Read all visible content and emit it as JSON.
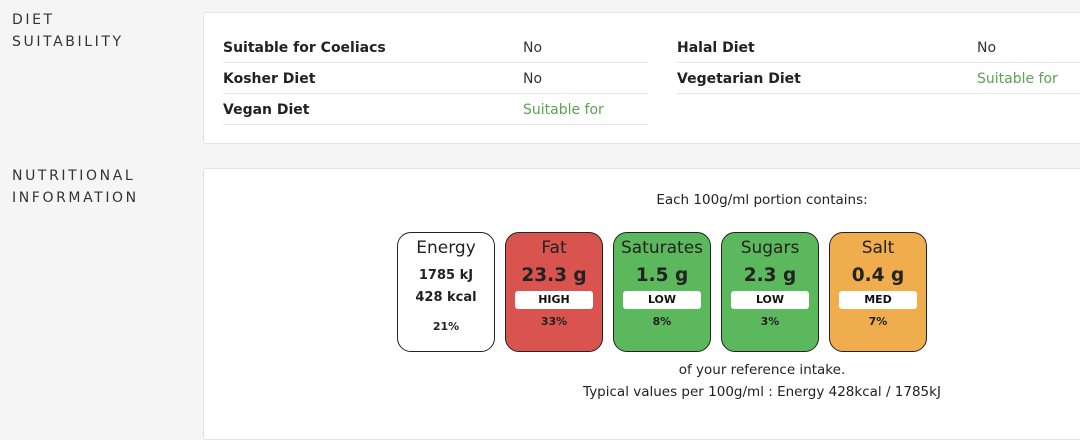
{
  "sections": {
    "diet": {
      "label_line1": "DIET",
      "label_line2": "SUITABILITY"
    },
    "nutrition": {
      "label_line1": "NUTRITIONAL",
      "label_line2": "INFORMATION"
    }
  },
  "diet": {
    "left": [
      {
        "label": "Suitable for Coeliacs",
        "value": "No"
      },
      {
        "label": "Kosher Diet",
        "value": "No"
      },
      {
        "label": "Vegan Diet",
        "value": "Suitable for"
      }
    ],
    "right": [
      {
        "label": "Halal Diet",
        "value": "No"
      },
      {
        "label": "Vegetarian Diet",
        "value": "Suitable for"
      }
    ]
  },
  "nutrition": {
    "portion_text": "Each 100g/ml portion contains:",
    "energy": {
      "name": "Energy",
      "kj": "1785 kJ",
      "kcal": "428 kcal",
      "pct": "21%"
    },
    "tiles": [
      {
        "name": "Fat",
        "amount": "23.3 g",
        "level": "HIGH",
        "pct": "33%",
        "color": "#d9534f"
      },
      {
        "name": "Saturates",
        "amount": "1.5 g",
        "level": "LOW",
        "pct": "8%",
        "color": "#5cb85c"
      },
      {
        "name": "Sugars",
        "amount": "2.3 g",
        "level": "LOW",
        "pct": "3%",
        "color": "#5cb85c"
      },
      {
        "name": "Salt",
        "amount": "0.4 g",
        "level": "MED",
        "pct": "7%",
        "color": "#f0ad4e"
      }
    ],
    "reference_text": "of your reference intake.",
    "typical_text": "Typical values per 100g/ml : Energy 428kcal / 1785kJ"
  }
}
